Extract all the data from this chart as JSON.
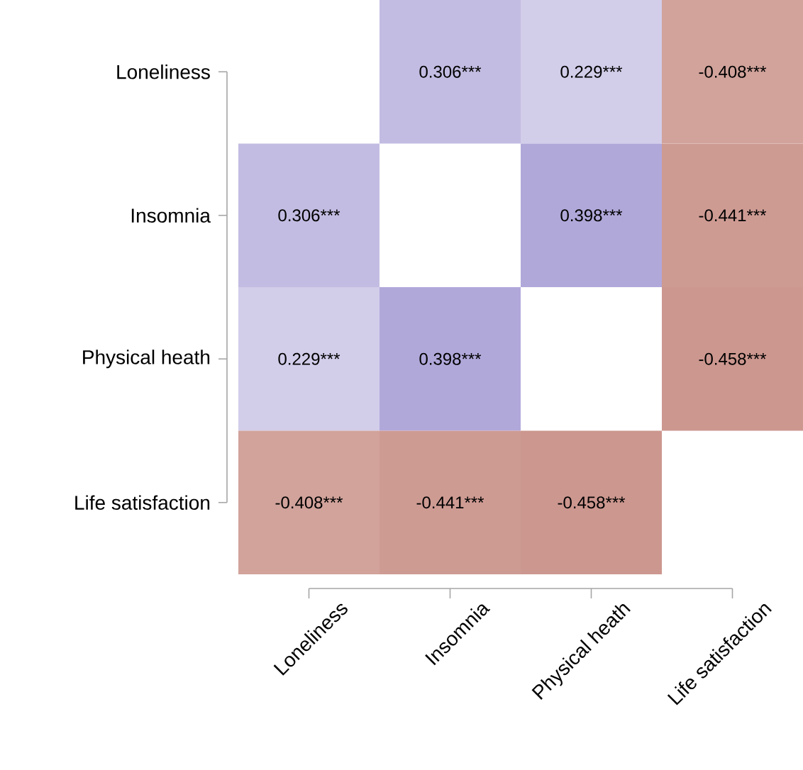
{
  "chart_data": {
    "type": "heatmap",
    "categories": [
      "Loneliness",
      "Insomnia",
      "Physical heath",
      "Life satisfaction"
    ],
    "y_categories": [
      "Loneliness",
      "Insomnia",
      "Physical heath",
      "Life satisfaction"
    ],
    "cells": [
      [
        null,
        0.306,
        0.229,
        -0.408
      ],
      [
        0.306,
        null,
        0.398,
        -0.441
      ],
      [
        0.229,
        0.398,
        null,
        -0.458
      ],
      [
        -0.408,
        -0.441,
        -0.458,
        null
      ]
    ],
    "cell_labels": [
      [
        null,
        "0.306***",
        "0.229***",
        "-0.408***"
      ],
      [
        "0.306***",
        null,
        "0.398***",
        "-0.441***"
      ],
      [
        "0.229***",
        "0.398***",
        null,
        "-0.458***"
      ],
      [
        "-0.408***",
        "-0.441***",
        "-0.458***",
        null
      ]
    ]
  }
}
